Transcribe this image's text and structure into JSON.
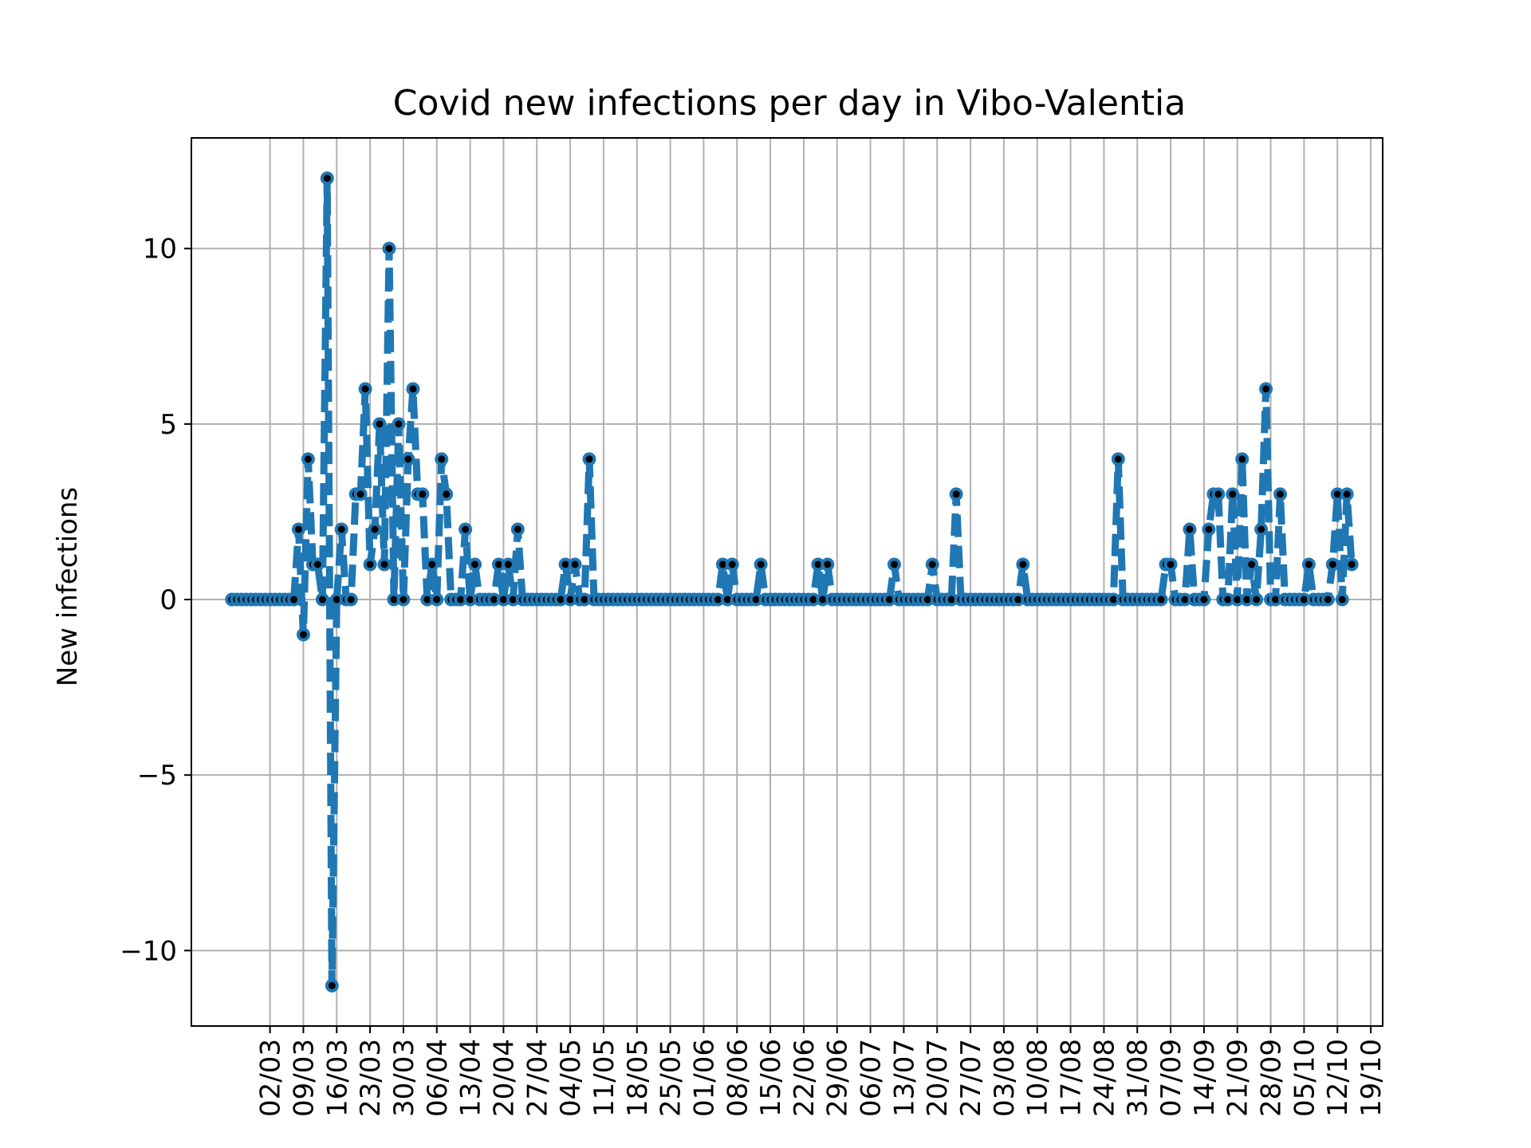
{
  "chart_data": {
    "type": "line",
    "title": "Covid new infections per day in Vibo-Valentia",
    "ylabel": "New infections",
    "xlabel": "",
    "ylim": [
      -12.15,
      13.15
    ],
    "yticks": [
      -10,
      -5,
      0,
      5,
      10
    ],
    "ytick_labels": [
      "−10",
      "−5",
      "0",
      "5",
      "10"
    ],
    "xlim": [
      -8.5,
      241.5
    ],
    "xticks": [
      {
        "x": 8,
        "label": "02/03"
      },
      {
        "x": 15,
        "label": "09/03"
      },
      {
        "x": 22,
        "label": "16/03"
      },
      {
        "x": 29,
        "label": "23/03"
      },
      {
        "x": 36,
        "label": "30/03"
      },
      {
        "x": 43,
        "label": "06/04"
      },
      {
        "x": 50,
        "label": "13/04"
      },
      {
        "x": 57,
        "label": "20/04"
      },
      {
        "x": 64,
        "label": "27/04"
      },
      {
        "x": 71,
        "label": "04/05"
      },
      {
        "x": 78,
        "label": "11/05"
      },
      {
        "x": 85,
        "label": "18/05"
      },
      {
        "x": 92,
        "label": "25/05"
      },
      {
        "x": 99,
        "label": "01/06"
      },
      {
        "x": 106,
        "label": "08/06"
      },
      {
        "x": 113,
        "label": "15/06"
      },
      {
        "x": 120,
        "label": "22/06"
      },
      {
        "x": 127,
        "label": "29/06"
      },
      {
        "x": 134,
        "label": "06/07"
      },
      {
        "x": 141,
        "label": "13/07"
      },
      {
        "x": 148,
        "label": "20/07"
      },
      {
        "x": 155,
        "label": "27/07"
      },
      {
        "x": 162,
        "label": "03/08"
      },
      {
        "x": 169,
        "label": "10/08"
      },
      {
        "x": 176,
        "label": "17/08"
      },
      {
        "x": 183,
        "label": "24/08"
      },
      {
        "x": 190,
        "label": "31/08"
      },
      {
        "x": 197,
        "label": "07/09"
      },
      {
        "x": 204,
        "label": "14/09"
      },
      {
        "x": 211,
        "label": "21/09"
      },
      {
        "x": 218,
        "label": "28/09"
      },
      {
        "x": 225,
        "label": "05/10"
      },
      {
        "x": 232,
        "label": "12/10"
      },
      {
        "x": 239,
        "label": "19/10"
      }
    ],
    "grid": true,
    "series": [
      {
        "color": "#1f77b4",
        "marker_color": "#000000",
        "values": [
          0,
          0,
          0,
          0,
          0,
          0,
          0,
          0,
          0,
          0,
          0,
          0,
          0,
          0,
          2,
          -1,
          4,
          1,
          1,
          0,
          12,
          -11,
          0,
          2,
          0,
          0,
          3,
          3,
          6,
          1,
          2,
          5,
          1,
          10,
          0,
          5,
          0,
          4,
          6,
          3,
          3,
          0,
          1,
          0,
          4,
          3,
          0,
          0,
          0,
          2,
          0,
          1,
          0,
          0,
          0,
          0,
          1,
          0,
          1,
          0,
          2,
          0,
          0,
          0,
          0,
          0,
          0,
          0,
          0,
          0,
          1,
          0,
          1,
          0,
          0,
          4,
          0,
          0,
          0,
          0,
          0,
          0,
          0,
          0,
          0,
          0,
          0,
          0,
          0,
          0,
          0,
          0,
          0,
          0,
          0,
          0,
          0,
          0,
          0,
          0,
          0,
          0,
          0,
          1,
          0,
          1,
          0,
          0,
          0,
          0,
          0,
          1,
          0,
          0,
          0,
          0,
          0,
          0,
          0,
          0,
          0,
          0,
          0,
          1,
          0,
          1,
          0,
          0,
          0,
          0,
          0,
          0,
          0,
          0,
          0,
          0,
          0,
          0,
          0,
          1,
          0,
          0,
          0,
          0,
          0,
          0,
          0,
          1,
          0,
          0,
          0,
          0,
          3,
          0,
          0,
          0,
          0,
          0,
          0,
          0,
          0,
          0,
          0,
          0,
          0,
          0,
          1,
          0,
          0,
          0,
          0,
          0,
          0,
          0,
          0,
          0,
          0,
          0,
          0,
          0,
          0,
          0,
          0,
          0,
          0,
          0,
          4,
          0,
          0,
          0,
          0,
          0,
          0,
          0,
          0,
          0,
          1,
          1,
          0,
          0,
          0,
          2,
          0,
          0,
          0,
          2,
          3,
          3,
          0,
          0,
          3,
          0,
          4,
          0,
          1,
          0,
          2,
          6,
          0,
          0,
          3,
          0,
          0,
          0,
          0,
          0,
          1,
          0,
          0,
          0,
          0,
          1,
          3,
          0,
          3,
          1
        ]
      }
    ]
  }
}
